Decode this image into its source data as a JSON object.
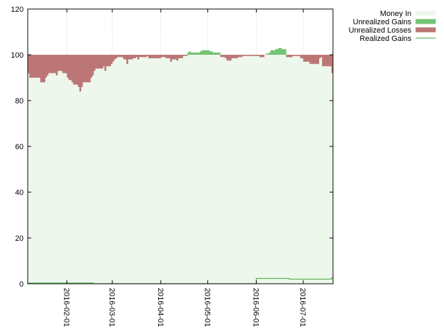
{
  "chart_data": {
    "type": "area",
    "title": "",
    "xlabel": "",
    "ylabel": "",
    "x_range": [
      "2016-01-07",
      "2016-07-20"
    ],
    "ylim": [
      0,
      120
    ],
    "y_ticks": [
      0,
      20,
      40,
      60,
      80,
      100,
      120
    ],
    "x_ticks": [
      "2016-02-01",
      "2016-03-01",
      "2016-04-01",
      "2016-05-01",
      "2016-06-01",
      "2016-07-01"
    ],
    "grid": true,
    "legend_position": "top-right, outside plot",
    "series": [
      {
        "name": "Money In",
        "kind": "area",
        "color": "#eef7ec",
        "value": 100
      },
      {
        "name": "Unrealized Gains",
        "kind": "bar",
        "color": "#74c476"
      },
      {
        "name": "Unrealized Losses",
        "kind": "bar",
        "color": "#bc7676"
      },
      {
        "name": "Realized Gains",
        "kind": "line",
        "color": "#5cb85c"
      }
    ],
    "portfolio_value": [
      [
        "2016-01-07",
        92
      ],
      [
        "2016-01-08",
        90
      ],
      [
        "2016-01-11",
        90
      ],
      [
        "2016-01-12",
        90
      ],
      [
        "2016-01-13",
        90
      ],
      [
        "2016-01-14",
        90
      ],
      [
        "2016-01-15",
        88
      ],
      [
        "2016-01-18",
        90
      ],
      [
        "2016-01-19",
        91
      ],
      [
        "2016-01-20",
        92
      ],
      [
        "2016-01-21",
        92
      ],
      [
        "2016-01-22",
        92
      ],
      [
        "2016-01-25",
        91
      ],
      [
        "2016-01-26",
        93
      ],
      [
        "2016-01-27",
        93
      ],
      [
        "2016-01-28",
        93
      ],
      [
        "2016-01-29",
        92
      ],
      [
        "2016-02-01",
        90
      ],
      [
        "2016-02-02",
        89
      ],
      [
        "2016-02-03",
        89
      ],
      [
        "2016-02-04",
        88
      ],
      [
        "2016-02-05",
        87
      ],
      [
        "2016-02-08",
        86
      ],
      [
        "2016-02-09",
        84
      ],
      [
        "2016-02-10",
        86
      ],
      [
        "2016-02-11",
        88
      ],
      [
        "2016-02-12",
        88
      ],
      [
        "2016-02-16",
        90
      ],
      [
        "2016-02-17",
        91
      ],
      [
        "2016-02-18",
        93
      ],
      [
        "2016-02-19",
        94
      ],
      [
        "2016-02-22",
        94
      ],
      [
        "2016-02-23",
        94
      ],
      [
        "2016-02-24",
        95
      ],
      [
        "2016-02-25",
        93
      ],
      [
        "2016-02-26",
        95
      ],
      [
        "2016-02-29",
        96
      ],
      [
        "2016-03-01",
        97
      ],
      [
        "2016-03-02",
        98
      ],
      [
        "2016-03-03",
        98.5
      ],
      [
        "2016-03-04",
        99
      ],
      [
        "2016-03-07",
        99
      ],
      [
        "2016-03-08",
        98
      ],
      [
        "2016-03-09",
        98
      ],
      [
        "2016-03-10",
        96
      ],
      [
        "2016-03-11",
        98
      ],
      [
        "2016-03-14",
        98.5
      ],
      [
        "2016-03-15",
        98.5
      ],
      [
        "2016-03-16",
        99
      ],
      [
        "2016-03-17",
        98
      ],
      [
        "2016-03-18",
        99
      ],
      [
        "2016-03-21",
        99
      ],
      [
        "2016-03-22",
        99
      ],
      [
        "2016-03-23",
        99.5
      ],
      [
        "2016-03-24",
        98.5
      ],
      [
        "2016-03-28",
        98.5
      ],
      [
        "2016-03-29",
        98.5
      ],
      [
        "2016-03-30",
        98.5
      ],
      [
        "2016-03-31",
        98.5
      ],
      [
        "2016-04-01",
        99
      ],
      [
        "2016-04-04",
        98.5
      ],
      [
        "2016-04-05",
        98.5
      ],
      [
        "2016-04-06",
        98.5
      ],
      [
        "2016-04-07",
        97
      ],
      [
        "2016-04-08",
        98
      ],
      [
        "2016-04-11",
        97.5
      ],
      [
        "2016-04-12",
        98.5
      ],
      [
        "2016-04-13",
        98.5
      ],
      [
        "2016-04-14",
        98.5
      ],
      [
        "2016-04-15",
        99.5
      ],
      [
        "2016-04-18",
        101
      ],
      [
        "2016-04-19",
        101.5
      ],
      [
        "2016-04-20",
        101
      ],
      [
        "2016-04-21",
        101
      ],
      [
        "2016-04-22",
        101
      ],
      [
        "2016-04-25",
        101
      ],
      [
        "2016-04-26",
        101.5
      ],
      [
        "2016-04-27",
        102
      ],
      [
        "2016-04-28",
        102
      ],
      [
        "2016-04-29",
        102
      ],
      [
        "2016-05-02",
        101.5
      ],
      [
        "2016-05-03",
        101.5
      ],
      [
        "2016-05-04",
        101
      ],
      [
        "2016-05-05",
        101
      ],
      [
        "2016-05-06",
        101
      ],
      [
        "2016-05-09",
        99
      ],
      [
        "2016-05-10",
        99
      ],
      [
        "2016-05-11",
        99
      ],
      [
        "2016-05-12",
        98.5
      ],
      [
        "2016-05-13",
        97.5
      ],
      [
        "2016-05-16",
        98.5
      ],
      [
        "2016-05-17",
        98.5
      ],
      [
        "2016-05-18",
        98.5
      ],
      [
        "2016-05-19",
        98.5
      ],
      [
        "2016-05-20",
        99
      ],
      [
        "2016-05-23",
        99.5
      ],
      [
        "2016-05-24",
        99.5
      ],
      [
        "2016-05-25",
        99.5
      ],
      [
        "2016-05-26",
        99.5
      ],
      [
        "2016-05-27",
        99.5
      ],
      [
        "2016-05-31",
        99.5
      ],
      [
        "2016-06-01",
        99.5
      ],
      [
        "2016-06-02",
        99.5
      ],
      [
        "2016-06-03",
        99
      ],
      [
        "2016-06-06",
        100
      ],
      [
        "2016-06-07",
        100.5
      ],
      [
        "2016-06-08",
        100.5
      ],
      [
        "2016-06-09",
        101
      ],
      [
        "2016-06-10",
        102
      ],
      [
        "2016-06-13",
        102.5
      ],
      [
        "2016-06-14",
        102.5
      ],
      [
        "2016-06-15",
        103
      ],
      [
        "2016-06-16",
        103
      ],
      [
        "2016-06-17",
        102.5
      ],
      [
        "2016-06-20",
        99
      ],
      [
        "2016-06-21",
        99
      ],
      [
        "2016-06-22",
        99
      ],
      [
        "2016-06-23",
        99
      ],
      [
        "2016-06-24",
        99.5
      ],
      [
        "2016-06-27",
        99.5
      ],
      [
        "2016-06-28",
        99.5
      ],
      [
        "2016-06-29",
        98.5
      ],
      [
        "2016-06-30",
        98.5
      ],
      [
        "2016-07-01",
        97
      ],
      [
        "2016-07-05",
        96
      ],
      [
        "2016-07-06",
        96
      ],
      [
        "2016-07-07",
        96
      ],
      [
        "2016-07-08",
        96
      ],
      [
        "2016-07-11",
        98.5
      ],
      [
        "2016-07-12",
        99
      ],
      [
        "2016-07-13",
        95
      ],
      [
        "2016-07-14",
        95
      ],
      [
        "2016-07-15",
        95
      ],
      [
        "2016-07-18",
        95
      ],
      [
        "2016-07-19",
        92
      ],
      [
        "2016-07-20",
        94
      ]
    ],
    "realized_gains": [
      [
        "2016-01-07",
        0.3
      ],
      [
        "2016-02-17",
        0.3
      ],
      [
        "2016-02-18",
        0
      ],
      [
        "2016-05-31",
        0
      ],
      [
        "2016-06-01",
        2.3
      ],
      [
        "2016-06-21",
        2.3
      ],
      [
        "2016-06-22",
        2.0
      ],
      [
        "2016-07-18",
        2.0
      ],
      [
        "2016-07-19",
        2.6
      ],
      [
        "2016-07-20",
        2.6
      ]
    ]
  }
}
